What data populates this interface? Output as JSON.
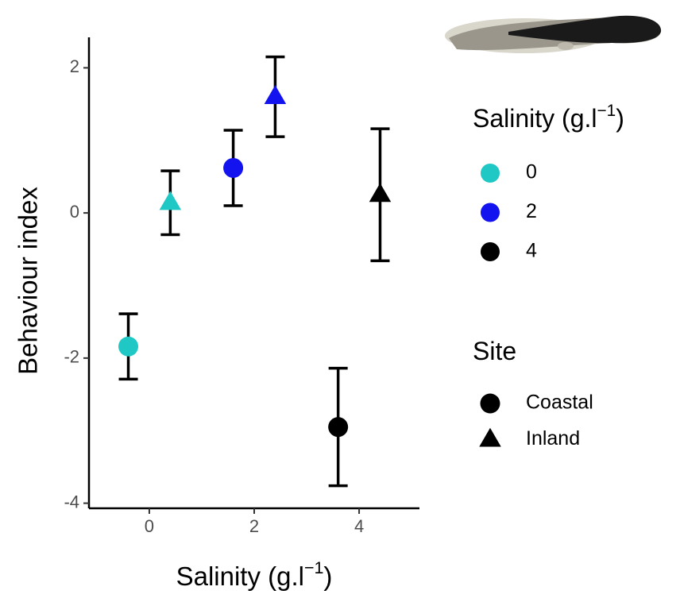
{
  "chart_data": {
    "type": "scatter",
    "x_label": {
      "text": "Salinity (g.l",
      "sup": "−1",
      "close": ")"
    },
    "y_label": "Behaviour index",
    "xlim": [
      -1.15,
      5.15
    ],
    "ylim": [
      -4.07,
      2.42
    ],
    "xticks": [
      0,
      2,
      4
    ],
    "yticks": [
      -4,
      -2,
      0,
      2
    ],
    "series": [
      {
        "name": "Coastal",
        "shape": "circle",
        "x": [
          -0.4,
          1.6,
          3.6
        ],
        "values": [
          -1.84,
          0.62,
          -2.95
        ],
        "errors": [
          0.45,
          0.52,
          0.81
        ],
        "colors": [
          "#1fc8c4",
          "#1313f0",
          "#000000"
        ]
      },
      {
        "name": "Inland",
        "shape": "triangle",
        "x": [
          0.4,
          2.4,
          4.4
        ],
        "values": [
          0.14,
          1.6,
          0.25
        ],
        "errors": [
          0.44,
          0.55,
          0.91
        ],
        "colors": [
          "#1fc8c4",
          "#1313f0",
          "#000000"
        ]
      }
    ],
    "legends": [
      {
        "title": {
          "text": "Salinity (g.l",
          "sup": "−1",
          "close": ")"
        },
        "entries": [
          {
            "label": "0",
            "color": "#1fc8c4"
          },
          {
            "label": "2",
            "color": "#1313f0"
          },
          {
            "label": "4",
            "color": "#000000"
          }
        ]
      },
      {
        "title": {
          "text": "Site"
        },
        "entries": [
          {
            "label": "Coastal",
            "shape": "circle"
          },
          {
            "label": "Inland",
            "shape": "triangle"
          }
        ]
      }
    ]
  }
}
